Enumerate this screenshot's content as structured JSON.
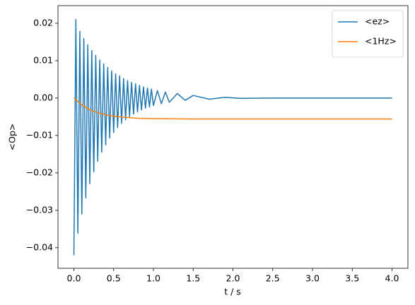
{
  "chart_data": {
    "type": "line",
    "xlabel": "t / s",
    "ylabel": "<Op>",
    "xlim": [
      -0.2,
      4.2
    ],
    "ylim": [
      -0.0455,
      0.0247
    ],
    "xticks": [
      {
        "value": 0,
        "label": "0.0"
      },
      {
        "value": 0.5,
        "label": "0.5"
      },
      {
        "value": 1,
        "label": "1.0"
      },
      {
        "value": 1.5,
        "label": "1.5"
      },
      {
        "value": 2,
        "label": "2.0"
      },
      {
        "value": 2.5,
        "label": "2.5"
      },
      {
        "value": 3,
        "label": "3.0"
      },
      {
        "value": 3.5,
        "label": "3.5"
      },
      {
        "value": 4,
        "label": "4.0"
      }
    ],
    "yticks": [
      {
        "value": 0.02,
        "label": "0.02"
      },
      {
        "value": 0.01,
        "label": "0.01"
      },
      {
        "value": 0,
        "label": "0.00"
      },
      {
        "value": -0.01,
        "label": "−0.01"
      },
      {
        "value": -0.02,
        "label": "−0.02"
      },
      {
        "value": -0.03,
        "label": "−0.03"
      },
      {
        "value": -0.04,
        "label": "−0.04"
      }
    ],
    "grid": false,
    "legend": "upper right",
    "series": [
      {
        "name": "<ez>",
        "color": "#1f77b4",
        "x": [
          0,
          0.025,
          0.05,
          0.075,
          0.1,
          0.125,
          0.15,
          0.175,
          0.2,
          0.225,
          0.25,
          0.275,
          0.3,
          0.325,
          0.35,
          0.375,
          0.4,
          0.425,
          0.45,
          0.475,
          0.5,
          0.525,
          0.55,
          0.575,
          0.6,
          0.625,
          0.65,
          0.675,
          0.7,
          0.725,
          0.75,
          0.775,
          0.8,
          0.825,
          0.85,
          0.875,
          0.9,
          0.925,
          0.95,
          0.975,
          1.0,
          1.05,
          1.1,
          1.15,
          1.2,
          1.3,
          1.4,
          1.5,
          1.7,
          1.9,
          2.1,
          2.5,
          4.0
        ],
        "values": [
          -0.042,
          0.021,
          -0.0361,
          0.0178,
          -0.031,
          0.0159,
          -0.0267,
          0.0142,
          -0.0229,
          0.0127,
          -0.0197,
          0.0114,
          -0.0169,
          0.0102,
          -0.0145,
          0.0091,
          -0.0125,
          0.0082,
          -0.0107,
          0.0073,
          -0.0092,
          0.0065,
          -0.0079,
          0.0059,
          -0.0068,
          0.0052,
          -0.0058,
          0.0047,
          -0.005,
          0.0042,
          -0.0043,
          0.0038,
          -0.0037,
          0.0034,
          -0.0032,
          0.003,
          -0.0027,
          0.0027,
          -0.0024,
          0.0024,
          -0.002,
          0.002,
          -0.0015,
          0.0016,
          -0.0011,
          0.0012,
          -0.0006,
          0.0007,
          -0.0003,
          0.0002,
          -0.0001,
          0,
          0
        ]
      },
      {
        "name": "<1Hz>",
        "color": "#ff7f0e",
        "x": [
          0,
          0.1,
          0.2,
          0.3,
          0.4,
          0.5,
          0.6,
          0.8,
          1.0,
          1.5,
          2.0,
          3.0,
          4.0
        ],
        "values": [
          0,
          -0.0018,
          -0.0031,
          -0.0039,
          -0.0045,
          -0.0048,
          -0.0051,
          -0.0054,
          -0.0055,
          -0.0056,
          -0.0056,
          -0.0056,
          -0.0056
        ]
      }
    ]
  }
}
